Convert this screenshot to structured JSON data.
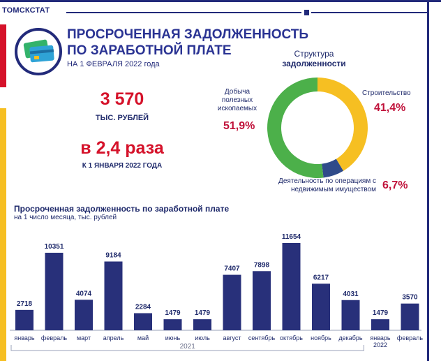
{
  "header": {
    "agency": "ТОМСКСТАТ",
    "title_line1": "ПРОСРОЧЕННАЯ ЗАДОЛЖЕННОСТЬ",
    "title_line2": "ПО ЗАРАБОТНОЙ ПЛАТЕ",
    "subtitle": "НА 1 ФЕВРАЛЯ 2022 года"
  },
  "summary": {
    "amount": "3 570",
    "amount_unit": "ТЫС. РУБЛЕЙ",
    "ratio": "в 2,4 раза",
    "ratio_note": "К 1 ЯНВАРЯ 2022 ГОДА"
  },
  "structure": {
    "title_line1": "Структура",
    "title_line2": "задолженности",
    "segments": [
      {
        "label_lines": [
          "Строительство"
        ],
        "percent_text": "41,4%",
        "value": 41.4,
        "color": "#f6bf22"
      },
      {
        "label_lines": [
          "Деятельность по операциям с",
          "недвижимым имуществом"
        ],
        "percent_text": "6,7%",
        "value": 6.7,
        "color": "#2f4b8a"
      },
      {
        "label_lines": [
          "Добыча",
          "полезных",
          "ископаемых"
        ],
        "percent_text": "51,9%",
        "value": 51.9,
        "color": "#4cb04a"
      }
    ]
  },
  "chart_data": {
    "type": "bar",
    "title": "Просроченная задолженность по заработной плате",
    "subtitle": "на 1 число месяца, тыс. рублей",
    "categories": [
      "январь",
      "февраль",
      "март",
      "апрель",
      "май",
      "июнь",
      "июль",
      "август",
      "сентябрь",
      "октябрь",
      "ноябрь",
      "декабрь",
      "январь\n2022",
      "февраль"
    ],
    "values": [
      2718,
      10351,
      4074,
      9184,
      2284,
      1479,
      1479,
      7407,
      7898,
      11654,
      6217,
      4031,
      1479,
      3570
    ],
    "value_labels": [
      "2718",
      "10351",
      "4074",
      "9184",
      "2284",
      "1479",
      "1479",
      "7407",
      "7898",
      "11654",
      "6217",
      "4031",
      "1479",
      "3570"
    ],
    "year_group_label": "2021",
    "bar_color": "#28307a"
  }
}
